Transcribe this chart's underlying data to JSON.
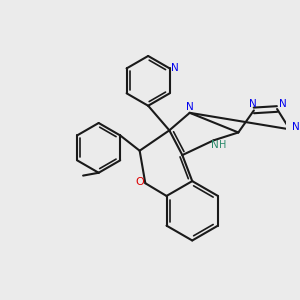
{
  "bg_color": "#ebebeb",
  "bond_color": "#1a1a1a",
  "N_color": "#0000ee",
  "O_color": "#dd0000",
  "NH_color": "#2a8a6a",
  "figsize": [
    3.0,
    3.0
  ],
  "dpi": 100,
  "lw": 1.5,
  "lw2": 1.2,
  "xlim": [
    0,
    10
  ],
  "ylim": [
    0,
    10
  ]
}
